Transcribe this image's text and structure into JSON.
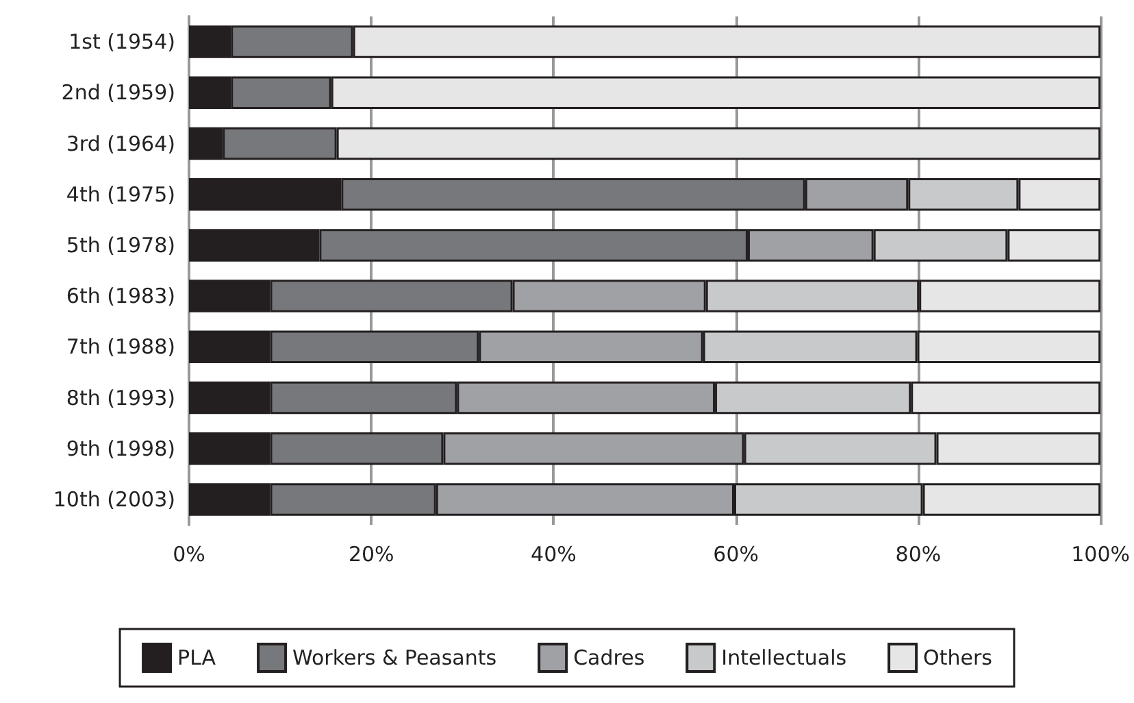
{
  "chart_data": {
    "type": "bar",
    "orientation": "horizontal",
    "stacked": true,
    "legend": "bottom",
    "grid": "x",
    "categories": [
      "1st (1954)",
      "2nd (1959)",
      "3rd (1964)",
      "4th (1975)",
      "5th (1978)",
      "6th (1983)",
      "7th (1988)",
      "8th (1993)",
      "9th (1998)",
      "10th (2003)"
    ],
    "xlim": [
      0,
      100
    ],
    "xticks": [
      {
        "value": 0,
        "label": "0%"
      },
      {
        "value": 20,
        "label": "20%"
      },
      {
        "value": 40,
        "label": "40%"
      },
      {
        "value": 60,
        "label": "60%"
      },
      {
        "value": 80,
        "label": "80%"
      },
      {
        "value": 100,
        "label": "100%"
      }
    ],
    "series": [
      {
        "name": "PLA",
        "color": "#231f20",
        "values": [
          4.6,
          4.6,
          3.7,
          16.7,
          14.3,
          8.9,
          8.9,
          8.9,
          8.9,
          8.9
        ]
      },
      {
        "name": "Workers & Peasants",
        "color": "#77787b",
        "values": [
          13.4,
          11.0,
          12.5,
          50.9,
          47.0,
          26.6,
          22.9,
          20.5,
          19.0,
          18.2
        ]
      },
      {
        "name": "Cadres",
        "color": "#a0a1a4",
        "values": [
          0,
          0,
          0,
          11.3,
          13.8,
          21.2,
          24.6,
          28.3,
          33.0,
          32.7
        ]
      },
      {
        "name": "Intellectuals",
        "color": "#c8c9cb",
        "values": [
          0,
          0,
          0,
          12.1,
          14.7,
          23.4,
          23.5,
          21.5,
          21.1,
          20.7
        ]
      },
      {
        "name": "Others",
        "color": "#e6e6e6",
        "values": [
          82.0,
          84.4,
          83.8,
          9.0,
          10.2,
          19.9,
          20.1,
          20.8,
          18.0,
          19.5
        ]
      }
    ]
  }
}
